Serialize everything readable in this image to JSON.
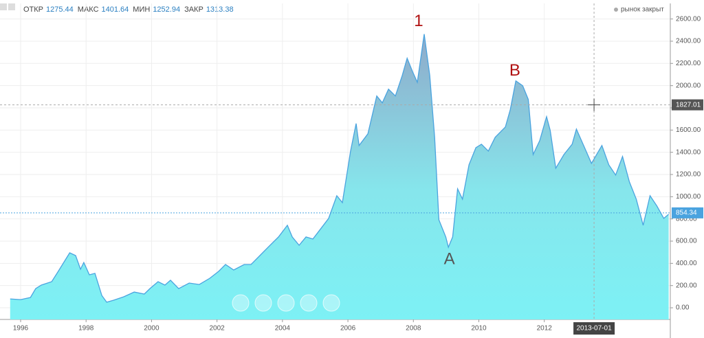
{
  "chart_data": {
    "type": "area",
    "header": [
      {
        "label": "ОТКР",
        "value": 1275.44
      },
      {
        "label": "МАКС",
        "value": 1401.64
      },
      {
        "label": "МИН",
        "value": 1252.94
      },
      {
        "label": "ЗАКР",
        "value": 1313.38
      }
    ],
    "status": "рынок закрыт",
    "series": [
      {
        "color": "#4aa3df",
        "x": [
          1995.68,
          1996.0,
          1996.3,
          1996.46,
          1996.63,
          1996.95,
          1997.15,
          1997.37,
          1997.5,
          1997.68,
          1997.83,
          1997.93,
          1998.1,
          1998.27,
          1998.48,
          1998.63,
          1998.84,
          1999.15,
          1999.47,
          1999.78,
          1999.95,
          2000.2,
          2000.41,
          2000.58,
          2000.83,
          2001.15,
          2001.46,
          2001.78,
          2002.05,
          2002.26,
          2002.51,
          2002.83,
          2003.04,
          2003.31,
          2003.56,
          2003.88,
          2004.15,
          2004.3,
          2004.51,
          2004.72,
          2004.93,
          2005.14,
          2005.41,
          2005.66,
          2005.83,
          2006.08,
          2006.25,
          2006.34,
          2006.61,
          2006.88,
          2007.05,
          2007.24,
          2007.45,
          2007.66,
          2007.81,
          2007.98,
          2008.12,
          2008.33,
          2008.5,
          2008.65,
          2008.78,
          2008.99,
          2009.07,
          2009.2,
          2009.35,
          2009.5,
          2009.7,
          2009.91,
          2010.08,
          2010.29,
          2010.5,
          2010.81,
          2010.96,
          2011.13,
          2011.34,
          2011.51,
          2011.66,
          2011.86,
          2012.07,
          2012.18,
          2012.35,
          2012.6,
          2012.85,
          2012.98,
          2013.23,
          2013.44,
          2013.76,
          2013.97,
          2014.18,
          2014.39,
          2014.6,
          2014.81,
          2015.02,
          2015.23,
          2015.44,
          2015.65,
          2015.8
        ],
        "values": [
          80,
          74,
          93,
          173,
          204,
          235,
          328,
          433,
          495,
          470,
          347,
          408,
          297,
          310,
          111,
          50,
          68,
          99,
          142,
          124,
          173,
          235,
          204,
          248,
          173,
          223,
          210,
          266,
          328,
          390,
          340,
          390,
          390,
          470,
          545,
          638,
          743,
          638,
          563,
          638,
          619,
          700,
          805,
          1009,
          947,
          1411,
          1659,
          1461,
          1566,
          1907,
          1845,
          1968,
          1907,
          2092,
          2247,
          2123,
          2030,
          2464,
          2092,
          1535,
          792,
          638,
          545,
          638,
          1071,
          978,
          1288,
          1442,
          1473,
          1411,
          1535,
          1628,
          1783,
          2043,
          1999,
          1876,
          1380,
          1504,
          1721,
          1597,
          1257,
          1380,
          1473,
          1609,
          1442,
          1300,
          1461,
          1288,
          1195,
          1362,
          1133,
          978,
          743,
          1009,
          916,
          805,
          842
        ]
      }
    ],
    "xlim": [
      1995.37,
      2015.85
    ],
    "xticks": [
      1996,
      1998,
      2000,
      2002,
      2004,
      2006,
      2008,
      2010,
      2012
    ],
    "ylim": [
      -105,
      2740
    ],
    "yticks": [
      {
        "value": 0,
        "label": "0.00"
      },
      {
        "value": 200,
        "label": "200.00"
      },
      {
        "value": 400,
        "label": "400.00"
      },
      {
        "value": 600,
        "label": "600.00"
      },
      {
        "value": 800,
        "label": "800.00"
      },
      {
        "value": 1000,
        "label": "1000.00"
      },
      {
        "value": 1200,
        "label": "1200.00"
      },
      {
        "value": 1400,
        "label": "1400.00"
      },
      {
        "value": 1600,
        "label": "1600.00"
      },
      {
        "value": 1800,
        "label": "1800.00"
      },
      {
        "value": 2000,
        "label": "2000.00"
      },
      {
        "value": 2200,
        "label": "2200.00"
      },
      {
        "value": 2400,
        "label": "2400.00"
      },
      {
        "value": 2600,
        "label": "2600.00"
      }
    ],
    "grid": true,
    "last_price": 854.34,
    "crosshair": {
      "x": 2013.52,
      "y": 1827.01,
      "x_label": "2013-07-01"
    },
    "annotations": [
      {
        "text": "1",
        "x": 2008.16,
        "y": 2575,
        "color": "#b01010"
      },
      {
        "text": "B",
        "x": 2011.1,
        "y": 2130,
        "color": "#b01010"
      },
      {
        "text": "A",
        "x": 2009.1,
        "y": 433,
        "color": "#555555"
      }
    ]
  }
}
